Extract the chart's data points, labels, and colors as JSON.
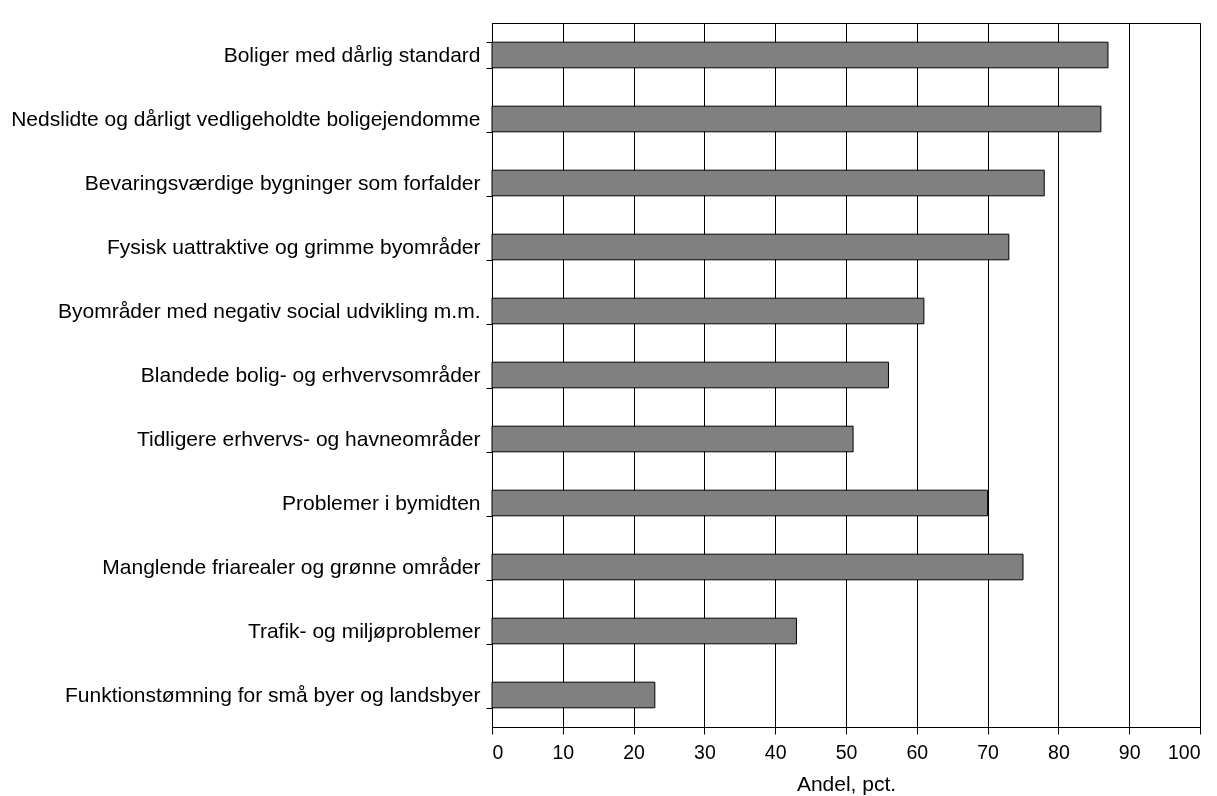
{
  "chart_data": {
    "type": "bar",
    "orientation": "horizontal",
    "categories": [
      "Boliger med dårlig standard",
      "Nedslidte og dårligt vedligeholdte boligejendomme",
      "Bevaringsværdige bygninger som forfalder",
      "Fysisk uattraktive og grimme byområder",
      "Byområder med negativ social udvikling m.m.",
      "Blandede bolig- og erhvervsområder",
      "Tidligere erhvervs- og havneområder",
      "Problemer i bymidten",
      "Manglende friarealer og grønne områder",
      "Trafik- og miljøproblemer",
      "Funktionstømning for små byer og landsbyer"
    ],
    "values": [
      87,
      86,
      78,
      73,
      61,
      56,
      51,
      70,
      75,
      43,
      23
    ],
    "color": "#808080",
    "xlabel": "Andel, pct.",
    "xlim": [
      0,
      100
    ],
    "xticks": [
      0,
      10,
      20,
      30,
      40,
      50,
      60,
      70,
      80,
      90,
      100
    ],
    "grid": "x"
  }
}
